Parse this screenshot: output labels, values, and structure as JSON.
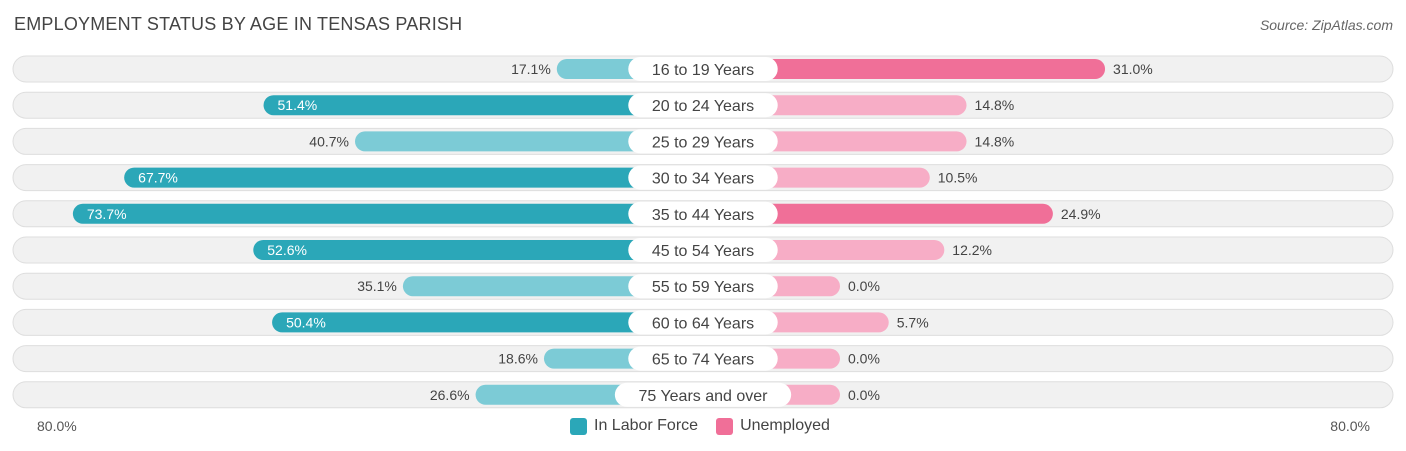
{
  "header": {
    "title": "EMPLOYMENT STATUS BY AGE IN TENSAS PARISH",
    "source": "Source: ZipAtlas.com"
  },
  "colors": {
    "labor_strong": "#2ba7b8",
    "labor_light": "#7ccbd6",
    "unemployed_strong": "#f06f98",
    "unemployed_light": "#f7adc6",
    "row_bg": "#f1f1f1",
    "row_border": "#dedede"
  },
  "chart_data": {
    "type": "bar",
    "orientation": "horizontal-diverging",
    "title": "EMPLOYMENT STATUS BY AGE IN TENSAS PARISH",
    "categories": [
      "16 to 19 Years",
      "20 to 24 Years",
      "25 to 29 Years",
      "30 to 34 Years",
      "35 to 44 Years",
      "45 to 54 Years",
      "55 to 59 Years",
      "60 to 64 Years",
      "65 to 74 Years",
      "75 Years and over"
    ],
    "series": [
      {
        "name": "In Labor Force",
        "side": "left",
        "values": [
          17.1,
          51.4,
          40.7,
          67.7,
          73.7,
          52.6,
          35.1,
          50.4,
          18.6,
          26.6
        ],
        "labels": [
          "17.1%",
          "51.4%",
          "40.7%",
          "67.7%",
          "73.7%",
          "52.6%",
          "35.1%",
          "50.4%",
          "18.6%",
          "26.6%"
        ]
      },
      {
        "name": "Unemployed",
        "side": "right",
        "values": [
          31.0,
          14.8,
          14.8,
          10.5,
          24.9,
          12.2,
          0.0,
          5.7,
          0.0,
          0.0
        ],
        "labels": [
          "31.0%",
          "14.8%",
          "14.8%",
          "10.5%",
          "24.9%",
          "12.2%",
          "0.0%",
          "5.7%",
          "0.0%",
          "0.0%"
        ]
      }
    ],
    "xlim": [
      -80,
      80
    ],
    "axis_min_label": "80.0%",
    "axis_max_label": "80.0%",
    "legend": [
      "In Labor Force",
      "Unemployed"
    ],
    "legend_position": "bottom-center"
  }
}
